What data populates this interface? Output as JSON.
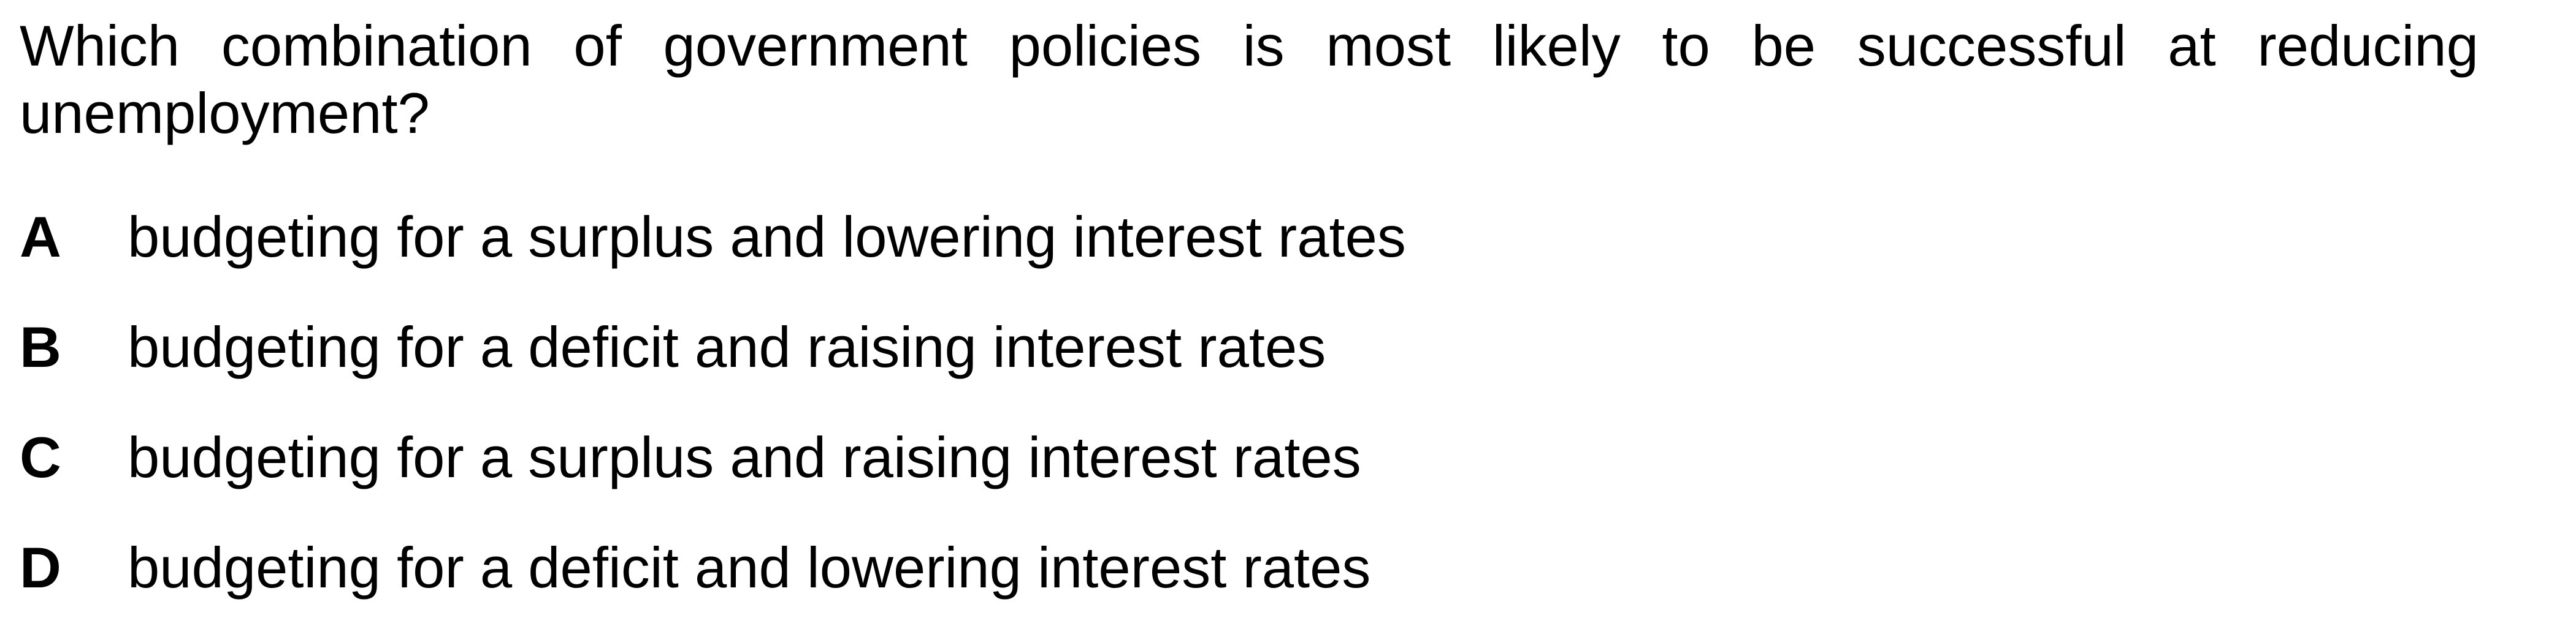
{
  "question": {
    "text": "Which combination of government policies is most likely to be successful at reducing unemployment?"
  },
  "options": [
    {
      "letter": "A",
      "text": "budgeting for a surplus and lowering interest rates"
    },
    {
      "letter": "B",
      "text": "budgeting for a deficit and raising interest rates"
    },
    {
      "letter": "C",
      "text": "budgeting for a surplus and raising interest rates"
    },
    {
      "letter": "D",
      "text": "budgeting for a deficit and lowering interest rates"
    }
  ]
}
